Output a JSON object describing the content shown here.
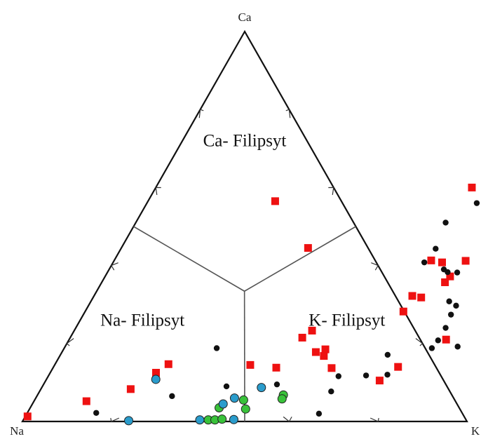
{
  "chart_data": {
    "type": "scatter",
    "subtype": "ternary",
    "vertex_labels": {
      "top": "Ca",
      "left": "Na",
      "right": "K"
    },
    "field_labels": [
      {
        "text": "Ca- Filipsyt",
        "ca": 0.72,
        "na": 0.14,
        "k": 0.14
      },
      {
        "text": "Na- Filipsyt",
        "ca": 0.26,
        "na": 0.6,
        "k": 0.14
      },
      {
        "text": "K- Filipsyt",
        "ca": 0.26,
        "na": 0.14,
        "k": 0.6
      }
    ],
    "boundaries": [
      {
        "from": {
          "ca": 0.333,
          "na": 0.333,
          "k": 0.333
        },
        "to": {
          "ca": 0.5,
          "na": 0.5,
          "k": 0.0
        }
      },
      {
        "from": {
          "ca": 0.333,
          "na": 0.333,
          "k": 0.333
        },
        "to": {
          "ca": 0.5,
          "na": 0.0,
          "k": 0.5
        }
      },
      {
        "from": {
          "ca": 0.333,
          "na": 0.333,
          "k": 0.333
        },
        "to": {
          "ca": 0.0,
          "na": 0.5,
          "k": 0.5
        }
      }
    ],
    "tick_fractions": [
      0.2,
      0.4,
      0.6,
      0.8
    ],
    "grid": false,
    "legend": "none",
    "series": [
      {
        "marker": "square",
        "color": "#ee1111",
        "points": [
          {
            "ca": 0.013,
            "k": 0.005
          },
          {
            "ca": 0.052,
            "k": 0.118
          },
          {
            "ca": 0.083,
            "k": 0.202
          },
          {
            "ca": 0.125,
            "k": 0.238
          },
          {
            "ca": 0.147,
            "k": 0.255
          },
          {
            "ca": 0.445,
            "k": 0.42
          },
          {
            "ca": 0.145,
            "k": 0.44
          },
          {
            "ca": 0.215,
            "k": 0.522
          },
          {
            "ca": 0.233,
            "k": 0.535
          },
          {
            "ca": 0.178,
            "k": 0.571
          },
          {
            "ca": 0.408,
            "k": 0.74
          },
          {
            "ca": 0.322,
            "k": 0.716
          },
          {
            "ca": 0.413,
            "k": 0.713
          },
          {
            "ca": 0.505,
            "k": 0.806
          },
          {
            "ca": 0.555,
            "k": 0.809
          },
          {
            "ca": 0.493,
            "k": 0.806
          },
          {
            "ca": 0.412,
            "k": 0.791
          },
          {
            "ca": 0.6,
            "k": 0.711
          },
          {
            "ca": 0.612,
            "k": 0.788
          },
          {
            "ca": 0.488,
            "k": 0.813
          },
          {
            "ca": 0.458,
            "k": 0.836
          },
          {
            "ca": 0.524,
            "k": 0.828
          },
          {
            "ca": 0.526,
            "k": 0.854
          },
          {
            "ca": 0.59,
            "k": 0.822
          },
          {
            "ca": 0.547,
            "k": 0.844
          },
          {
            "ca": 0.512,
            "k": 0.829
          },
          {
            "ca": 0.43,
            "k": 0.828
          },
          {
            "ca": 0.372,
            "k": 0.776
          },
          {
            "ca": 0.357,
            "k": 0.772
          },
          {
            "ca": 0.318,
            "k": 0.738
          },
          {
            "ca": 0.282,
            "k": 0.716
          },
          {
            "ca": 0.21,
            "k": 0.848
          },
          {
            "ca": 0.14,
            "k": 0.775
          },
          {
            "ca": 0.105,
            "k": 0.751
          },
          {
            "ca": 0.137,
            "k": 0.627
          },
          {
            "ca": 0.185,
            "k": 0.589
          },
          {
            "ca": 0.168,
            "k": 0.594
          },
          {
            "ca": 0.138,
            "k": 0.502
          },
          {
            "ca": 0.565,
            "k": 0.286
          }
        ]
      },
      {
        "marker": "circle",
        "color": "#111111",
        "points": [
          {
            "ca": 0.022,
            "k": 0.155
          },
          {
            "ca": 0.065,
            "k": 0.304
          },
          {
            "ca": 0.09,
            "k": 0.414
          },
          {
            "ca": 0.188,
            "k": 0.343
          },
          {
            "ca": 0.095,
            "k": 0.525
          },
          {
            "ca": 0.02,
            "k": 0.657
          },
          {
            "ca": 0.077,
            "k": 0.656
          },
          {
            "ca": 0.118,
            "k": 0.714
          },
          {
            "ca": 0.192,
            "k": 0.883
          },
          {
            "ca": 0.188,
            "k": 0.827
          },
          {
            "ca": 0.208,
            "k": 0.831
          },
          {
            "ca": 0.24,
            "k": 0.832
          },
          {
            "ca": 0.274,
            "k": 0.827
          },
          {
            "ca": 0.297,
            "k": 0.827
          },
          {
            "ca": 0.308,
            "k": 0.806
          },
          {
            "ca": 0.39,
            "k": 0.753
          },
          {
            "ca": 0.383,
            "k": 0.765
          },
          {
            "ca": 0.382,
            "k": 0.787
          },
          {
            "ca": 0.408,
            "k": 0.7
          },
          {
            "ca": 0.443,
            "k": 0.708
          },
          {
            "ca": 0.51,
            "k": 0.697
          },
          {
            "ca": 0.56,
            "k": 0.742
          },
          {
            "ca": 0.171,
            "k": 0.736
          },
          {
            "ca": 0.12,
            "k": 0.761
          },
          {
            "ca": 0.116,
            "k": 0.653
          }
        ]
      },
      {
        "marker": "circle",
        "color": "#39c23a",
        "points": [
          {
            "ca": 0.004,
            "k": 0.416
          },
          {
            "ca": 0.004,
            "k": 0.431
          },
          {
            "ca": 0.006,
            "k": 0.446
          },
          {
            "ca": 0.035,
            "k": 0.425
          },
          {
            "ca": 0.055,
            "k": 0.47
          },
          {
            "ca": 0.032,
            "k": 0.486
          },
          {
            "ca": 0.068,
            "k": 0.553
          },
          {
            "ca": 0.058,
            "k": 0.555
          }
        ]
      },
      {
        "marker": "circle",
        "color": "#2a9ccc",
        "points": [
          {
            "ca": 0.002,
            "k": 0.238
          },
          {
            "ca": 0.004,
            "k": 0.397
          },
          {
            "ca": 0.005,
            "k": 0.473
          },
          {
            "ca": 0.045,
            "k": 0.429
          },
          {
            "ca": 0.06,
            "k": 0.447
          },
          {
            "ca": 0.087,
            "k": 0.494
          },
          {
            "ca": 0.108,
            "k": 0.246
          }
        ]
      }
    ]
  }
}
